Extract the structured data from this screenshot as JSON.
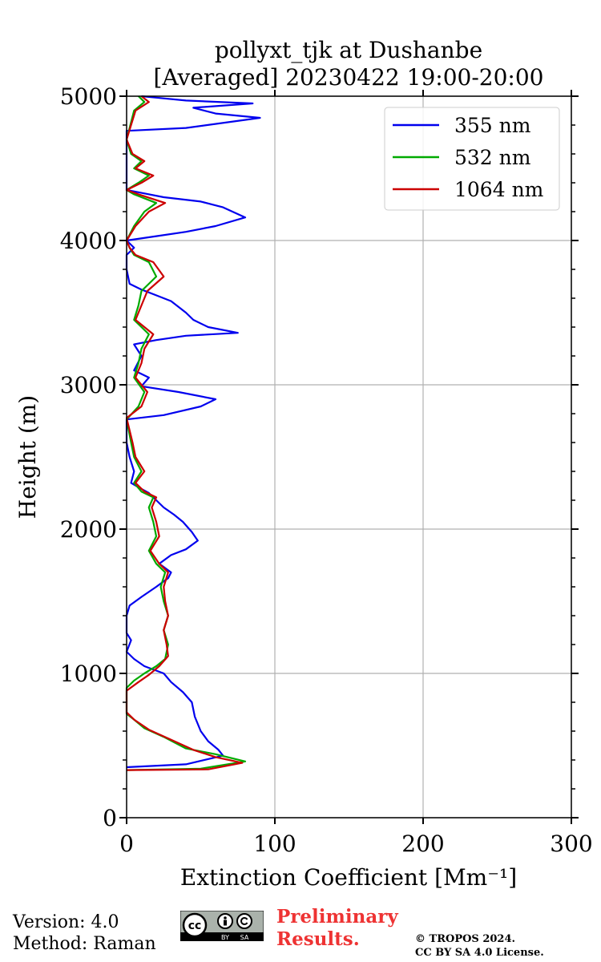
{
  "chart_data": {
    "type": "line",
    "title": "pollyxt_tjk at Dushanbe",
    "subtitle": "[Averaged] 20230422 19:00-20:00",
    "xlabel": "Extinction Coefficient [Mm⁻¹]",
    "ylabel": "Height (m)",
    "xlim": [
      0,
      300
    ],
    "ylim": [
      0,
      5000
    ],
    "xticks": [
      0,
      100,
      200,
      300
    ],
    "yticks": [
      0,
      1000,
      2000,
      3000,
      4000,
      5000
    ],
    "xtick_labels": [
      "0",
      "100",
      "200",
      "300"
    ],
    "ytick_labels": [
      "0",
      "1000",
      "2000",
      "3000",
      "4000",
      "5000"
    ],
    "grid": true,
    "legend_position": "top-right",
    "series": [
      {
        "name": "355 nm",
        "color": "#0000ee",
        "points": [
          [
            0,
            350
          ],
          [
            40,
            370
          ],
          [
            65,
            430
          ],
          [
            62,
            470
          ],
          [
            55,
            530
          ],
          [
            50,
            600
          ],
          [
            46,
            700
          ],
          [
            44,
            800
          ],
          [
            38,
            870
          ],
          [
            30,
            940
          ],
          [
            25,
            1000
          ],
          [
            12,
            1050
          ],
          [
            5,
            1100
          ],
          [
            0,
            1150
          ],
          [
            3,
            1230
          ],
          [
            0,
            1280
          ],
          [
            0,
            1400
          ],
          [
            2,
            1470
          ],
          [
            10,
            1530
          ],
          [
            20,
            1600
          ],
          [
            28,
            1660
          ],
          [
            30,
            1700
          ],
          [
            22,
            1760
          ],
          [
            30,
            1820
          ],
          [
            40,
            1860
          ],
          [
            48,
            1920
          ],
          [
            44,
            1980
          ],
          [
            38,
            2050
          ],
          [
            32,
            2100
          ],
          [
            25,
            2150
          ],
          [
            20,
            2200
          ],
          [
            15,
            2250
          ],
          [
            8,
            2290
          ],
          [
            3,
            2320
          ],
          [
            5,
            2400
          ],
          [
            2,
            2500
          ],
          [
            0,
            2600
          ],
          [
            0,
            2760
          ],
          [
            25,
            2790
          ],
          [
            50,
            2850
          ],
          [
            60,
            2900
          ],
          [
            35,
            2950
          ],
          [
            10,
            2990
          ],
          [
            15,
            3050
          ],
          [
            5,
            3100
          ],
          [
            10,
            3200
          ],
          [
            5,
            3280
          ],
          [
            20,
            3310
          ],
          [
            40,
            3340
          ],
          [
            75,
            3360
          ],
          [
            55,
            3400
          ],
          [
            45,
            3450
          ],
          [
            40,
            3500
          ],
          [
            30,
            3580
          ],
          [
            20,
            3620
          ],
          [
            10,
            3660
          ],
          [
            2,
            3700
          ],
          [
            0,
            3800
          ],
          [
            0,
            3900
          ],
          [
            5,
            3950
          ],
          [
            0,
            4000
          ],
          [
            20,
            4030
          ],
          [
            40,
            4060
          ],
          [
            60,
            4100
          ],
          [
            80,
            4160
          ],
          [
            65,
            4230
          ],
          [
            50,
            4270
          ],
          [
            25,
            4300
          ],
          [
            10,
            4330
          ],
          [
            0,
            4350
          ],
          [
            0,
            4760
          ],
          [
            40,
            4780
          ],
          [
            90,
            4850
          ],
          [
            60,
            4880
          ],
          [
            45,
            4920
          ],
          [
            85,
            4950
          ],
          [
            40,
            4970
          ],
          [
            20,
            4990
          ],
          [
            10,
            5000
          ]
        ]
      },
      {
        "name": "532 nm",
        "color": "#00aa00",
        "points": [
          [
            0,
            330
          ],
          [
            50,
            340
          ],
          [
            80,
            390
          ],
          [
            60,
            440
          ],
          [
            40,
            480
          ],
          [
            25,
            560
          ],
          [
            12,
            620
          ],
          [
            5,
            680
          ],
          [
            0,
            720
          ],
          [
            0,
            900
          ],
          [
            5,
            950
          ],
          [
            12,
            1000
          ],
          [
            20,
            1050
          ],
          [
            26,
            1100
          ],
          [
            28,
            1200
          ],
          [
            25,
            1300
          ],
          [
            28,
            1400
          ],
          [
            25,
            1500
          ],
          [
            23,
            1600
          ],
          [
            26,
            1700
          ],
          [
            20,
            1760
          ],
          [
            15,
            1850
          ],
          [
            20,
            1950
          ],
          [
            18,
            2050
          ],
          [
            15,
            2150
          ],
          [
            18,
            2220
          ],
          [
            10,
            2260
          ],
          [
            5,
            2320
          ],
          [
            10,
            2400
          ],
          [
            5,
            2500
          ],
          [
            3,
            2600
          ],
          [
            0,
            2760
          ],
          [
            8,
            2850
          ],
          [
            12,
            2950
          ],
          [
            5,
            3050
          ],
          [
            8,
            3150
          ],
          [
            10,
            3250
          ],
          [
            15,
            3350
          ],
          [
            5,
            3450
          ],
          [
            8,
            3550
          ],
          [
            10,
            3650
          ],
          [
            20,
            3750
          ],
          [
            15,
            3850
          ],
          [
            5,
            3900
          ],
          [
            2,
            3950
          ],
          [
            0,
            4000
          ],
          [
            5,
            4100
          ],
          [
            12,
            4200
          ],
          [
            20,
            4260
          ],
          [
            5,
            4320
          ],
          [
            0,
            4350
          ],
          [
            8,
            4400
          ],
          [
            15,
            4450
          ],
          [
            5,
            4500
          ],
          [
            10,
            4550
          ],
          [
            3,
            4600
          ],
          [
            0,
            4700
          ],
          [
            5,
            4900
          ],
          [
            12,
            4960
          ],
          [
            8,
            5000
          ]
        ]
      },
      {
        "name": "1064 nm",
        "color": "#cc0000",
        "points": [
          [
            0,
            330
          ],
          [
            55,
            335
          ],
          [
            78,
            380
          ],
          [
            60,
            420
          ],
          [
            45,
            470
          ],
          [
            30,
            540
          ],
          [
            15,
            610
          ],
          [
            5,
            680
          ],
          [
            0,
            730
          ],
          [
            0,
            880
          ],
          [
            8,
            940
          ],
          [
            15,
            990
          ],
          [
            22,
            1050
          ],
          [
            28,
            1120
          ],
          [
            27,
            1200
          ],
          [
            25,
            1300
          ],
          [
            28,
            1400
          ],
          [
            26,
            1500
          ],
          [
            25,
            1600
          ],
          [
            28,
            1700
          ],
          [
            22,
            1760
          ],
          [
            16,
            1850
          ],
          [
            22,
            1950
          ],
          [
            20,
            2050
          ],
          [
            17,
            2150
          ],
          [
            20,
            2220
          ],
          [
            12,
            2260
          ],
          [
            6,
            2320
          ],
          [
            12,
            2400
          ],
          [
            6,
            2500
          ],
          [
            4,
            2600
          ],
          [
            0,
            2770
          ],
          [
            10,
            2850
          ],
          [
            14,
            2950
          ],
          [
            6,
            3050
          ],
          [
            10,
            3150
          ],
          [
            12,
            3250
          ],
          [
            18,
            3350
          ],
          [
            6,
            3450
          ],
          [
            10,
            3550
          ],
          [
            14,
            3650
          ],
          [
            25,
            3750
          ],
          [
            18,
            3850
          ],
          [
            6,
            3900
          ],
          [
            2,
            3950
          ],
          [
            0,
            4000
          ],
          [
            6,
            4100
          ],
          [
            15,
            4200
          ],
          [
            26,
            4260
          ],
          [
            8,
            4320
          ],
          [
            0,
            4350
          ],
          [
            10,
            4400
          ],
          [
            18,
            4450
          ],
          [
            6,
            4500
          ],
          [
            12,
            4550
          ],
          [
            4,
            4600
          ],
          [
            0,
            4700
          ],
          [
            6,
            4900
          ],
          [
            15,
            4960
          ],
          [
            10,
            5000
          ]
        ]
      }
    ]
  },
  "footer": {
    "version": "Version: 4.0",
    "method": "Method: Raman",
    "preliminary_line1": "Preliminary",
    "preliminary_line2": "Results.",
    "copyright_line1": "© TROPOS 2024.",
    "copyright_line2": "CC BY SA 4.0 License.",
    "badge_by": "BY",
    "badge_sa": "SA",
    "badge_cc": "cc"
  }
}
